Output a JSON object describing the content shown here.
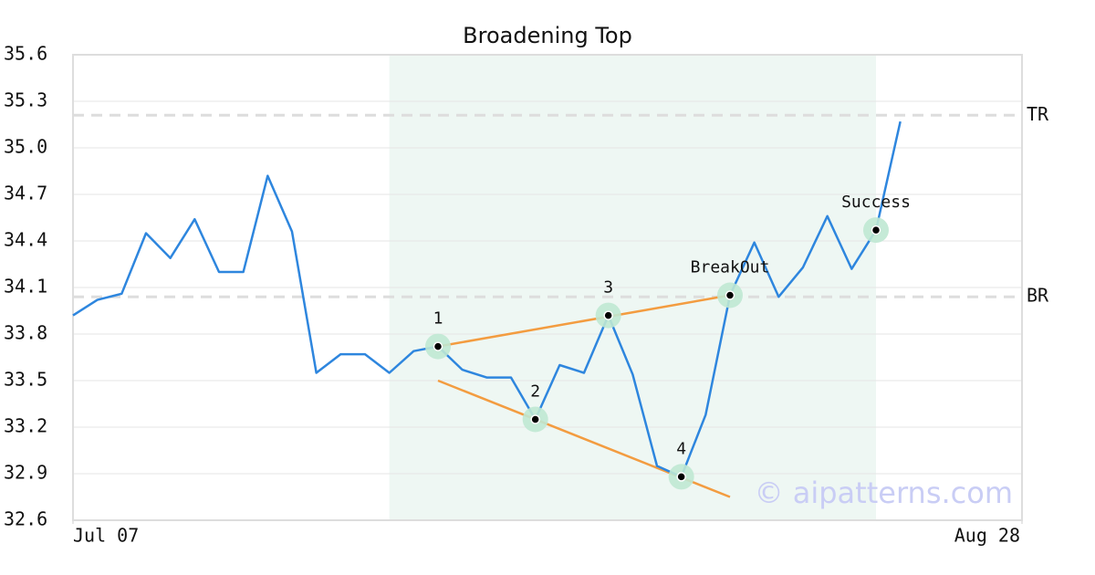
{
  "chart_data": {
    "type": "line",
    "title": "Broadening Top",
    "x": [
      0,
      1,
      2,
      3,
      4,
      5,
      6,
      7,
      8,
      9,
      10,
      11,
      12,
      13,
      14,
      15,
      16,
      17,
      18,
      19,
      20,
      21,
      22,
      23,
      24,
      25,
      26,
      27,
      28,
      29,
      30,
      31,
      32,
      33,
      34
    ],
    "series": [
      {
        "color": "#2e86de",
        "values": [
          33.92,
          34.02,
          34.06,
          34.45,
          34.29,
          34.54,
          34.2,
          34.2,
          34.82,
          34.46,
          33.55,
          33.67,
          33.67,
          33.55,
          33.69,
          33.72,
          33.57,
          33.52,
          33.52,
          33.25,
          33.6,
          33.55,
          33.92,
          33.54,
          32.95,
          32.88,
          33.28,
          34.05,
          34.39,
          34.04,
          34.23,
          34.56,
          34.22,
          34.47,
          35.17
        ]
      }
    ],
    "xlim": [
      0,
      39
    ],
    "xticks": [
      {
        "value": 0,
        "label": "Jul 07"
      },
      {
        "value": 39,
        "label": "Aug 28"
      }
    ],
    "ylim": [
      32.6,
      35.6
    ],
    "yticks": [
      32.6,
      32.9,
      33.2,
      33.5,
      33.8,
      34.1,
      34.4,
      34.7,
      {
        "value": 35.0,
        "label": "35.0"
      },
      35.3,
      35.6
    ],
    "grid": true,
    "shade": {
      "x": [
        13,
        33
      ],
      "color": "#eef7f3"
    },
    "levels": [
      {
        "label": "TR",
        "value": 35.21
      },
      {
        "label": "BR",
        "value": 34.04
      }
    ],
    "trendlines": [
      {
        "color": "#f39c40",
        "x": [
          15,
          27
        ],
        "values": [
          33.72,
          34.05
        ]
      },
      {
        "color": "#f39c40",
        "x": [
          15,
          27
        ],
        "values": [
          33.5,
          32.75
        ]
      }
    ],
    "points": [
      {
        "label": "1",
        "x": 15,
        "value": 33.72
      },
      {
        "label": "2",
        "x": 19,
        "value": 33.25
      },
      {
        "label": "3",
        "x": 22,
        "value": 33.92
      },
      {
        "label": "4",
        "x": 25,
        "value": 32.88
      },
      {
        "label": "BreakOut",
        "x": 27,
        "value": 34.05
      },
      {
        "label": "Success",
        "x": 33,
        "value": 34.47
      }
    ],
    "watermark": "© aipatterns.com"
  }
}
